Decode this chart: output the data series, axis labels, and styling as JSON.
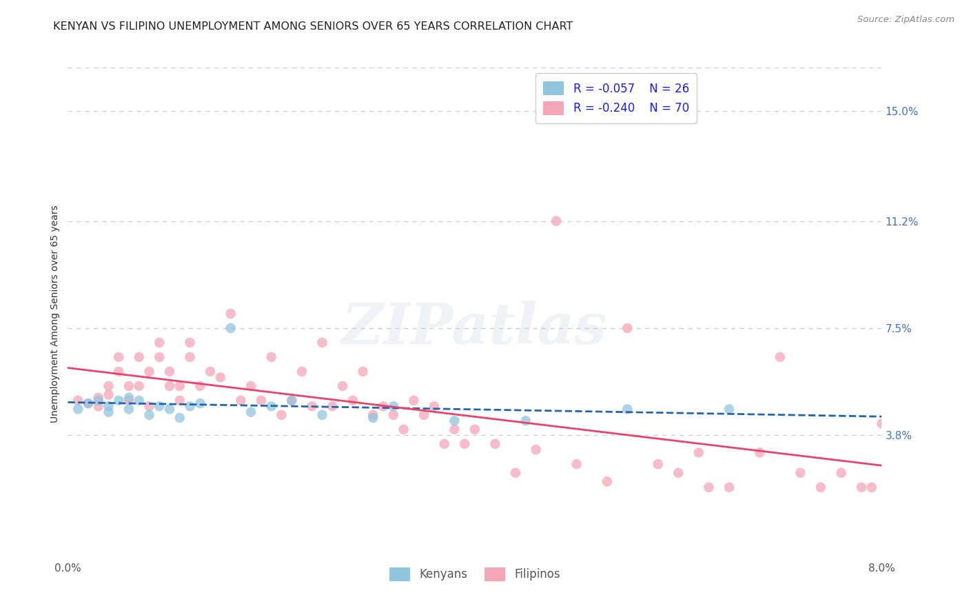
{
  "title": "KENYAN VS FILIPINO UNEMPLOYMENT AMONG SENIORS OVER 65 YEARS CORRELATION CHART",
  "source": "Source: ZipAtlas.com",
  "ylabel": "Unemployment Among Seniors over 65 years",
  "xlim": [
    0.0,
    0.08
  ],
  "ylim": [
    -0.005,
    0.165
  ],
  "x_ticks": [
    0.0,
    0.02,
    0.04,
    0.06,
    0.08
  ],
  "x_tick_labels": [
    "0.0%",
    "",
    "",
    "",
    "8.0%"
  ],
  "y_tick_vals_right": [
    0.038,
    0.075,
    0.112,
    0.15
  ],
  "y_tick_labels_right": [
    "3.8%",
    "7.5%",
    "11.2%",
    "15.0%"
  ],
  "kenyan_R": "-0.057",
  "kenyan_N": "26",
  "filipino_R": "-0.240",
  "filipino_N": "70",
  "kenyan_color": "#92c5de",
  "filipino_color": "#f4a6b8",
  "kenyan_line_color": "#2166ac",
  "filipino_line_color": "#e8436a",
  "kenyan_scatter_x": [
    0.001,
    0.002,
    0.003,
    0.004,
    0.004,
    0.005,
    0.006,
    0.006,
    0.007,
    0.008,
    0.009,
    0.01,
    0.011,
    0.012,
    0.013,
    0.016,
    0.018,
    0.02,
    0.022,
    0.025,
    0.03,
    0.032,
    0.038,
    0.045,
    0.055,
    0.065
  ],
  "kenyan_scatter_y": [
    0.047,
    0.049,
    0.05,
    0.046,
    0.048,
    0.05,
    0.047,
    0.051,
    0.05,
    0.045,
    0.048,
    0.047,
    0.044,
    0.048,
    0.049,
    0.075,
    0.046,
    0.048,
    0.05,
    0.045,
    0.044,
    0.048,
    0.043,
    0.043,
    0.047,
    0.047
  ],
  "filipino_scatter_x": [
    0.001,
    0.002,
    0.003,
    0.003,
    0.004,
    0.004,
    0.005,
    0.005,
    0.006,
    0.006,
    0.007,
    0.007,
    0.008,
    0.008,
    0.009,
    0.009,
    0.01,
    0.01,
    0.011,
    0.011,
    0.012,
    0.012,
    0.013,
    0.014,
    0.015,
    0.016,
    0.017,
    0.018,
    0.019,
    0.02,
    0.021,
    0.022,
    0.023,
    0.024,
    0.025,
    0.026,
    0.027,
    0.028,
    0.029,
    0.03,
    0.031,
    0.032,
    0.033,
    0.034,
    0.035,
    0.036,
    0.037,
    0.038,
    0.039,
    0.04,
    0.042,
    0.044,
    0.046,
    0.048,
    0.05,
    0.053,
    0.055,
    0.058,
    0.06,
    0.062,
    0.063,
    0.065,
    0.068,
    0.07,
    0.072,
    0.074,
    0.076,
    0.078,
    0.079,
    0.08
  ],
  "filipino_scatter_y": [
    0.05,
    0.049,
    0.051,
    0.048,
    0.052,
    0.055,
    0.06,
    0.065,
    0.05,
    0.055,
    0.065,
    0.055,
    0.06,
    0.048,
    0.065,
    0.07,
    0.055,
    0.06,
    0.05,
    0.055,
    0.065,
    0.07,
    0.055,
    0.06,
    0.058,
    0.08,
    0.05,
    0.055,
    0.05,
    0.065,
    0.045,
    0.05,
    0.06,
    0.048,
    0.07,
    0.048,
    0.055,
    0.05,
    0.06,
    0.045,
    0.048,
    0.045,
    0.04,
    0.05,
    0.045,
    0.048,
    0.035,
    0.04,
    0.035,
    0.04,
    0.035,
    0.025,
    0.033,
    0.112,
    0.028,
    0.022,
    0.075,
    0.028,
    0.025,
    0.032,
    0.02,
    0.02,
    0.032,
    0.065,
    0.025,
    0.02,
    0.025,
    0.02,
    0.02,
    0.042
  ],
  "watermark_text": "ZIPatlas",
  "background_color": "#ffffff",
  "grid_color": "#cccccc",
  "title_fontsize": 11.5,
  "tick_fontsize": 11,
  "legend_fontsize": 11,
  "scatter_size": 110,
  "scatter_alpha": 0.75,
  "line_width": 2.0
}
